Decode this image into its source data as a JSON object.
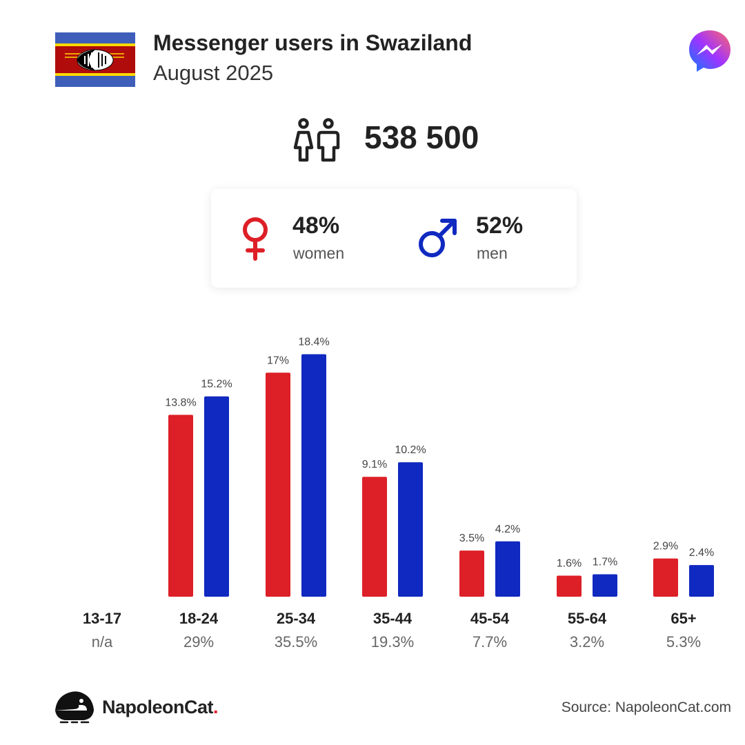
{
  "header": {
    "title": "Messenger users in Swaziland",
    "subtitle": "August 2025"
  },
  "icons": {
    "flag": "swaziland-flag-icon",
    "app": "messenger-logo-icon",
    "users": "users-icon",
    "female": "female-icon",
    "male": "male-icon",
    "brand": "napoleoncat-logo-icon"
  },
  "total_users": "538 500",
  "gender": {
    "women": {
      "percent": "48%",
      "label": "women"
    },
    "men": {
      "percent": "52%",
      "label": "men"
    }
  },
  "colors": {
    "women": "#dd1f27",
    "men": "#1029c0"
  },
  "age_groups": [
    {
      "label": "13-17",
      "total": "n/a"
    },
    {
      "label": "18-24",
      "total": "29%"
    },
    {
      "label": "25-34",
      "total": "35.5%"
    },
    {
      "label": "35-44",
      "total": "19.3%"
    },
    {
      "label": "45-54",
      "total": "7.7%"
    },
    {
      "label": "55-64",
      "total": "3.2%"
    },
    {
      "label": "65+",
      "total": "5.3%"
    }
  ],
  "chart_data": {
    "type": "bar",
    "categories": [
      "13-17",
      "18-24",
      "25-34",
      "35-44",
      "45-54",
      "55-64",
      "65+"
    ],
    "series": [
      {
        "values": [
          null,
          13.8,
          17,
          9.1,
          3.5,
          1.6,
          2.9
        ],
        "labels": [
          "",
          "13.8%",
          "17%",
          "9.1%",
          "3.5%",
          "1.6%",
          "2.9%"
        ],
        "color": "#dd1f27"
      },
      {
        "values": [
          null,
          15.2,
          18.4,
          10.2,
          4.2,
          1.7,
          2.4
        ],
        "labels": [
          "",
          "15.2%",
          "18.4%",
          "10.2%",
          "4.2%",
          "1.7%",
          "2.4%"
        ],
        "color": "#1029c0"
      }
    ],
    "ylim": [
      0,
      20
    ],
    "grid": false
  },
  "footer": {
    "brand_name": "NapoleonCat",
    "brand_dot": ".",
    "source": "Source: NapoleonCat.com"
  }
}
